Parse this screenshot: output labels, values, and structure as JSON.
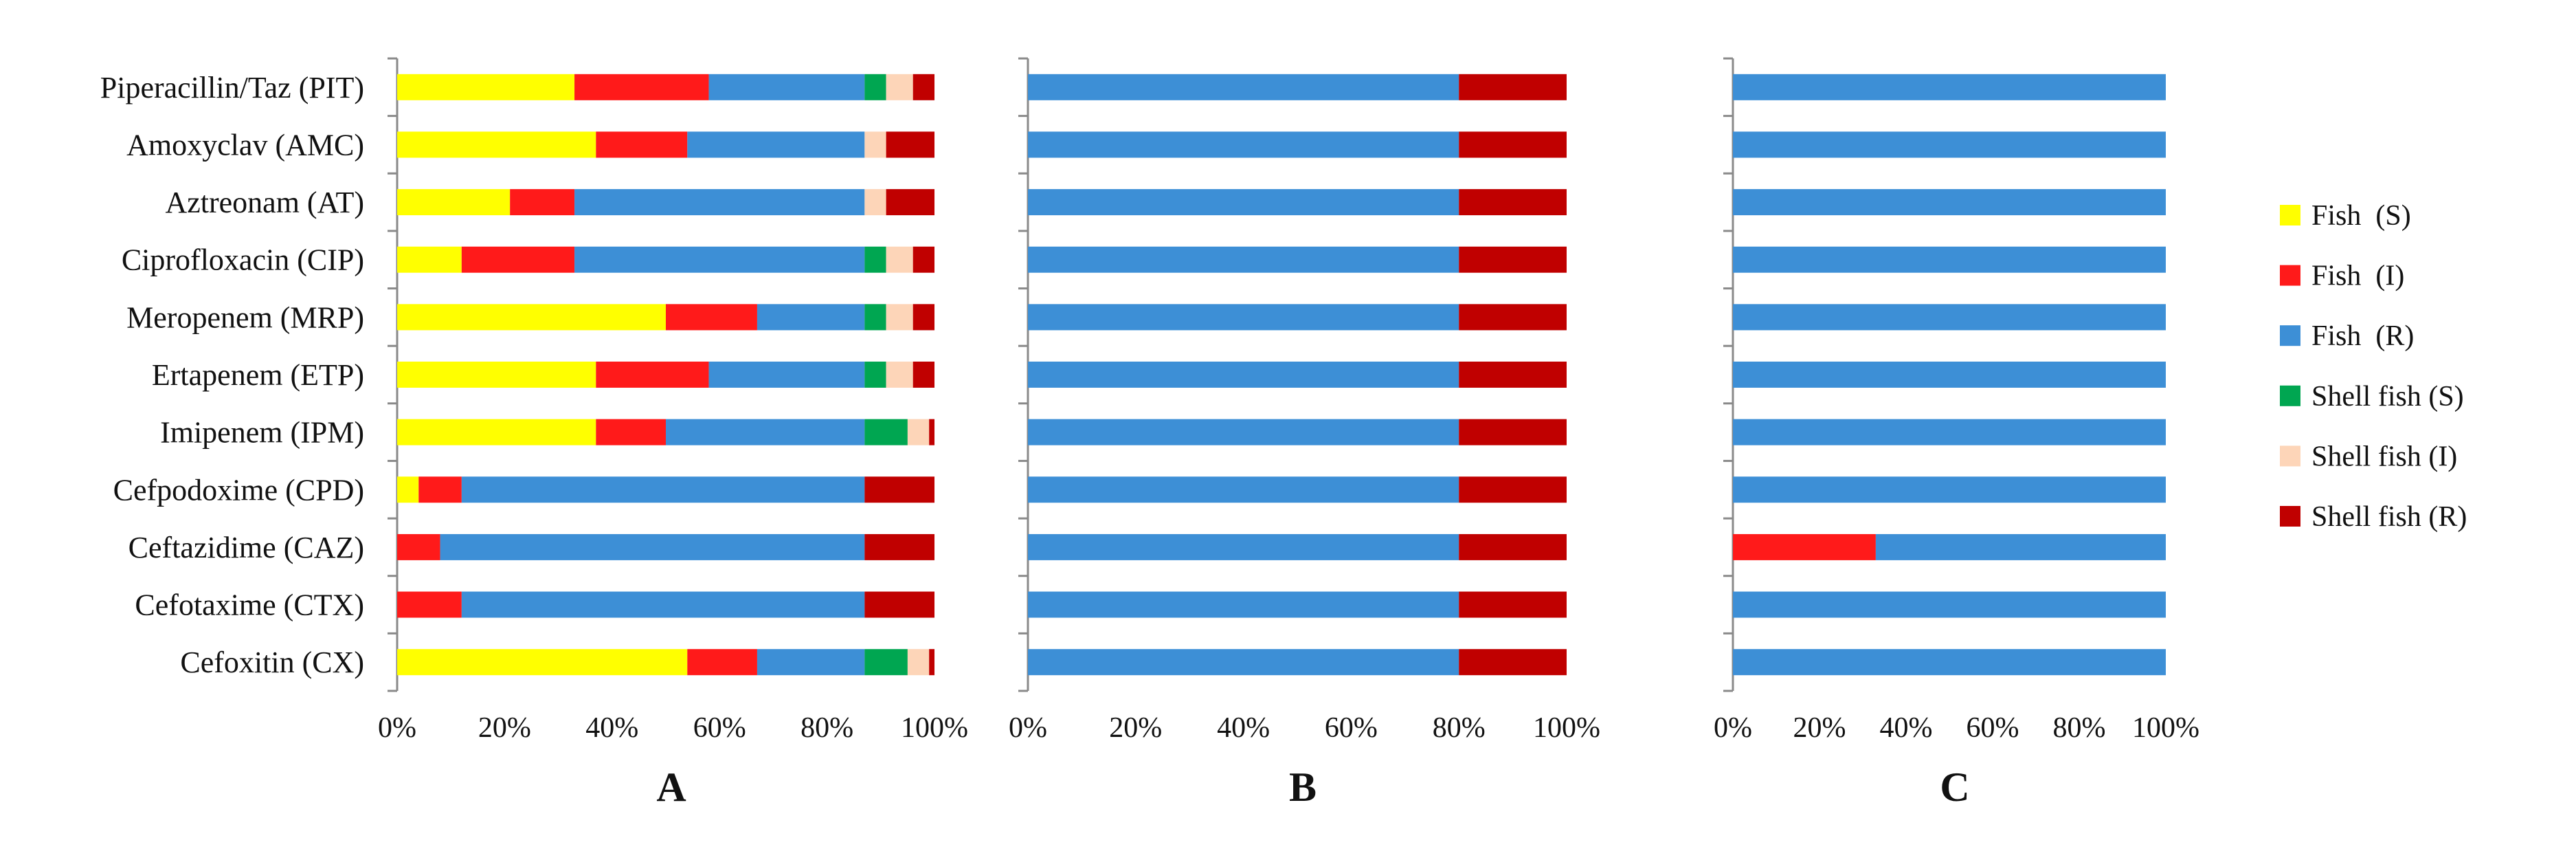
{
  "chart_data": [
    {
      "type": "bar",
      "stacked": true,
      "orientation": "horizontal",
      "panel_label": "A",
      "categories": [
        "Piperacillin/Taz (PIT)",
        "Amoxyclav (AMC)",
        "Aztreonam (AT)",
        "Ciprofloxacin (CIP)",
        "Meropenem (MRP)",
        "Ertapenem (ETP)",
        "Imipenem (IPM)",
        "Cefpodoxime (CPD)",
        "Ceftazidime (CAZ)",
        "Cefotaxime (CTX)",
        "Cefoxitin (CX)"
      ],
      "series": [
        {
          "name": "Fish  (S)",
          "values": [
            33,
            37,
            21,
            12,
            50,
            37,
            37,
            4,
            0,
            0,
            54
          ]
        },
        {
          "name": "Fish  (I)",
          "values": [
            25,
            17,
            12,
            21,
            17,
            21,
            13,
            8,
            8,
            12,
            13
          ]
        },
        {
          "name": "Fish  (R)",
          "values": [
            29,
            33,
            54,
            54,
            20,
            29,
            37,
            75,
            79,
            75,
            20
          ]
        },
        {
          "name": "Shell fish (S)",
          "values": [
            4,
            0,
            0,
            4,
            4,
            4,
            8,
            0,
            0,
            0,
            8
          ]
        },
        {
          "name": "Shell fish (I)",
          "values": [
            5,
            4,
            4,
            5,
            5,
            5,
            4,
            0,
            0,
            0,
            4
          ]
        },
        {
          "name": "Shell fish (R)",
          "values": [
            4,
            9,
            9,
            4,
            4,
            4,
            1,
            13,
            13,
            13,
            1
          ]
        }
      ],
      "xlim": [
        0,
        100
      ],
      "xticks": [
        "0%",
        "20%",
        "40%",
        "60%",
        "80%",
        "100%"
      ]
    },
    {
      "type": "bar",
      "stacked": true,
      "orientation": "horizontal",
      "panel_label": "B",
      "categories": [
        "Piperacillin/Taz (PIT)",
        "Amoxyclav (AMC)",
        "Aztreonam (AT)",
        "Ciprofloxacin (CIP)",
        "Meropenem (MRP)",
        "Ertapenem (ETP)",
        "Imipenem (IPM)",
        "Cefpodoxime (CPD)",
        "Ceftazidime (CAZ)",
        "Cefotaxime (CTX)",
        "Cefoxitin (CX)"
      ],
      "series": [
        {
          "name": "Fish  (S)",
          "values": [
            0,
            0,
            0,
            0,
            0,
            0,
            0,
            0,
            0,
            0,
            0
          ]
        },
        {
          "name": "Fish  (I)",
          "values": [
            0,
            0,
            0,
            0,
            0,
            0,
            0,
            0,
            0,
            0,
            0
          ]
        },
        {
          "name": "Fish  (R)",
          "values": [
            80,
            80,
            80,
            80,
            80,
            80,
            80,
            80,
            80,
            80,
            80
          ]
        },
        {
          "name": "Shell fish (S)",
          "values": [
            0,
            0,
            0,
            0,
            0,
            0,
            0,
            0,
            0,
            0,
            0
          ]
        },
        {
          "name": "Shell fish (I)",
          "values": [
            0,
            0,
            0,
            0,
            0,
            0,
            0,
            0,
            0,
            0,
            0
          ]
        },
        {
          "name": "Shell fish (R)",
          "values": [
            20,
            20,
            20,
            20,
            20,
            20,
            20,
            20,
            20,
            20,
            20
          ]
        }
      ],
      "xlim": [
        0,
        100
      ],
      "xticks": [
        "0%",
        "20%",
        "40%",
        "60%",
        "80%",
        "100%"
      ]
    },
    {
      "type": "bar",
      "stacked": true,
      "orientation": "horizontal",
      "panel_label": "C",
      "categories": [
        "Piperacillin/Taz (PIT)",
        "Amoxyclav (AMC)",
        "Aztreonam (AT)",
        "Ciprofloxacin (CIP)",
        "Meropenem (MRP)",
        "Ertapenem (ETP)",
        "Imipenem (IPM)",
        "Cefpodoxime (CPD)",
        "Ceftazidime (CAZ)",
        "Cefotaxime (CTX)",
        "Cefoxitin (CX)"
      ],
      "series": [
        {
          "name": "Fish  (S)",
          "values": [
            0,
            0,
            0,
            0,
            0,
            0,
            0,
            0,
            0,
            0,
            0
          ]
        },
        {
          "name": "Fish  (I)",
          "values": [
            0,
            0,
            0,
            0,
            0,
            0,
            0,
            0,
            33,
            0,
            0
          ]
        },
        {
          "name": "Fish  (R)",
          "values": [
            100,
            100,
            100,
            100,
            100,
            100,
            100,
            100,
            67,
            100,
            100
          ]
        },
        {
          "name": "Shell fish (S)",
          "values": [
            0,
            0,
            0,
            0,
            0,
            0,
            0,
            0,
            0,
            0,
            0
          ]
        },
        {
          "name": "Shell fish (I)",
          "values": [
            0,
            0,
            0,
            0,
            0,
            0,
            0,
            0,
            0,
            0,
            0
          ]
        },
        {
          "name": "Shell fish (R)",
          "values": [
            0,
            0,
            0,
            0,
            0,
            0,
            0,
            0,
            0,
            0,
            0
          ]
        }
      ],
      "xlim": [
        0,
        100
      ],
      "xticks": [
        "0%",
        "20%",
        "40%",
        "60%",
        "80%",
        "100%"
      ]
    }
  ],
  "legend": {
    "position": "right",
    "entries": [
      "Fish  (S)",
      "Fish  (I)",
      "Fish  (R)",
      "Shell fish (S)",
      "Shell fish (I)",
      "Shell fish (R)"
    ]
  },
  "colors": [
    "#ffff00",
    "#ff1a1a",
    "#3d8fd6",
    "#00a651",
    "#fdd5b8",
    "#c00000"
  ]
}
